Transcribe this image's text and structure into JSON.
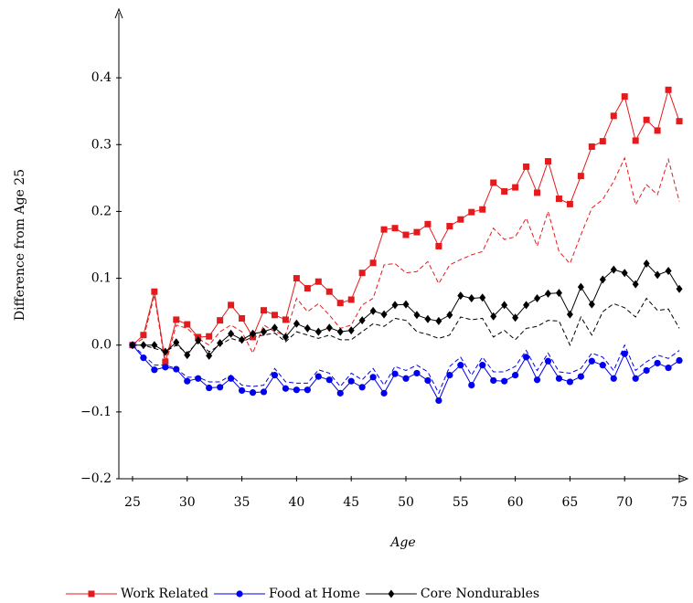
{
  "chart_data": {
    "type": "line",
    "xlabel": "Age",
    "ylabel": "Difference from Age 25",
    "x": [
      25,
      26,
      27,
      28,
      29,
      30,
      31,
      32,
      33,
      34,
      35,
      36,
      37,
      38,
      39,
      40,
      41,
      42,
      43,
      44,
      45,
      46,
      47,
      48,
      49,
      50,
      51,
      52,
      53,
      54,
      55,
      56,
      57,
      58,
      59,
      60,
      61,
      62,
      63,
      64,
      65,
      66,
      67,
      68,
      69,
      70,
      71,
      72,
      73,
      74,
      75
    ],
    "xlim": [
      23.75,
      75.75
    ],
    "xticks": [
      25,
      30,
      35,
      40,
      45,
      50,
      55,
      60,
      65,
      70,
      75
    ],
    "ylim": [
      -0.2,
      0.5
    ],
    "yticks": [
      {
        "value": -0.2,
        "label": "−0.2"
      },
      {
        "value": -0.1,
        "label": "−0.1"
      },
      {
        "value": 0,
        "label": "0.0"
      },
      0.1,
      0.2,
      0.3,
      0.4
    ],
    "series": [
      {
        "color": "#e41a1c",
        "dash": true,
        "values": [
          0,
          0.01,
          0.075,
          -0.03,
          0.03,
          0.025,
          0.01,
          0.0,
          0.02,
          0.03,
          0.02,
          -0.012,
          0.03,
          0.02,
          0.015,
          0.07,
          0.05,
          0.062,
          0.045,
          0.025,
          0.03,
          0.06,
          0.07,
          0.12,
          0.122,
          0.108,
          0.11,
          0.125,
          0.092,
          0.12,
          0.128,
          0.135,
          0.14,
          0.175,
          0.158,
          0.162,
          0.19,
          0.148,
          0.2,
          0.14,
          0.122,
          0.165,
          0.205,
          0.218,
          0.245,
          0.28,
          0.21,
          0.24,
          0.225,
          0.278,
          0.215
        ]
      },
      {
        "color": "#0000ee",
        "dash": true,
        "values": [
          0,
          -0.015,
          -0.03,
          -0.03,
          -0.035,
          -0.048,
          -0.048,
          -0.055,
          -0.055,
          -0.045,
          -0.06,
          -0.062,
          -0.06,
          -0.035,
          -0.055,
          -0.057,
          -0.057,
          -0.037,
          -0.042,
          -0.062,
          -0.042,
          -0.052,
          -0.035,
          -0.06,
          -0.032,
          -0.038,
          -0.03,
          -0.04,
          -0.072,
          -0.032,
          -0.018,
          -0.045,
          -0.018,
          -0.04,
          -0.04,
          -0.032,
          -0.008,
          -0.038,
          -0.012,
          -0.04,
          -0.042,
          -0.035,
          -0.012,
          -0.018,
          -0.038,
          0.0,
          -0.038,
          -0.025,
          -0.015,
          -0.02,
          -0.008
        ]
      },
      {
        "color": "#000000",
        "dash": true,
        "values": [
          0,
          0,
          -0.005,
          -0.01,
          0,
          -0.012,
          0.005,
          -0.01,
          0,
          0.01,
          0.005,
          0.012,
          0.015,
          0.018,
          0.005,
          0.02,
          0.015,
          0.01,
          0.015,
          0.008,
          0.008,
          0.02,
          0.032,
          0.028,
          0.04,
          0.037,
          0.02,
          0.016,
          0.01,
          0.015,
          0.042,
          0.038,
          0.04,
          0.012,
          0.022,
          0.008,
          0.025,
          0.028,
          0.037,
          0.036,
          0.0,
          0.042,
          0.015,
          0.05,
          0.062,
          0.056,
          0.042,
          0.07,
          0.052,
          0.054,
          0.025
        ]
      },
      {
        "name": "Work Related",
        "color": "#e41a1c",
        "marker": "square",
        "values": [
          0,
          0.015,
          0.08,
          -0.025,
          0.038,
          0.031,
          0.012,
          0.013,
          0.037,
          0.06,
          0.04,
          0.012,
          0.052,
          0.045,
          0.038,
          0.1,
          0.085,
          0.095,
          0.08,
          0.063,
          0.068,
          0.108,
          0.123,
          0.173,
          0.175,
          0.165,
          0.169,
          0.181,
          0.148,
          0.178,
          0.188,
          0.199,
          0.203,
          0.243,
          0.23,
          0.236,
          0.267,
          0.228,
          0.275,
          0.219,
          0.211,
          0.253,
          0.297,
          0.305,
          0.343,
          0.372,
          0.306,
          0.337,
          0.321,
          0.382,
          0.335
        ]
      },
      {
        "name": "Food at Home",
        "color": "#0000ee",
        "marker": "circle",
        "values": [
          0,
          -0.019,
          -0.037,
          -0.033,
          -0.036,
          -0.054,
          -0.05,
          -0.064,
          -0.063,
          -0.05,
          -0.068,
          -0.071,
          -0.07,
          -0.045,
          -0.065,
          -0.067,
          -0.067,
          -0.047,
          -0.052,
          -0.072,
          -0.054,
          -0.063,
          -0.048,
          -0.072,
          -0.043,
          -0.05,
          -0.042,
          -0.053,
          -0.083,
          -0.045,
          -0.03,
          -0.06,
          -0.03,
          -0.053,
          -0.054,
          -0.045,
          -0.018,
          -0.052,
          -0.024,
          -0.05,
          -0.055,
          -0.047,
          -0.024,
          -0.03,
          -0.05,
          -0.013,
          -0.05,
          -0.038,
          -0.027,
          -0.034,
          -0.023
        ]
      },
      {
        "name": "Core Nondurables",
        "color": "#000000",
        "marker": "diamond",
        "values": [
          0,
          0,
          0,
          -0.01,
          0.004,
          -0.015,
          0.007,
          -0.016,
          0.003,
          0.017,
          0.008,
          0.017,
          0.02,
          0.026,
          0.012,
          0.032,
          0.025,
          0.02,
          0.026,
          0.02,
          0.022,
          0.037,
          0.051,
          0.046,
          0.06,
          0.061,
          0.045,
          0.039,
          0.036,
          0.045,
          0.074,
          0.07,
          0.071,
          0.043,
          0.06,
          0.041,
          0.06,
          0.07,
          0.077,
          0.078,
          0.046,
          0.087,
          0.061,
          0.098,
          0.113,
          0.108,
          0.091,
          0.122,
          0.105,
          0.111,
          0.084
        ]
      }
    ]
  }
}
